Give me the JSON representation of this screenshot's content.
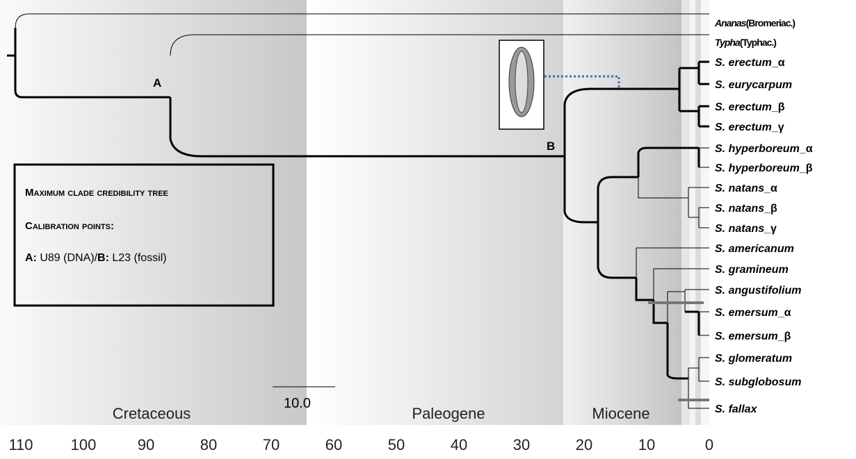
{
  "taxa": [
    {
      "name": "Ananas",
      "suffix": "(Bromeriac.)"
    },
    {
      "name": "Typha",
      "suffix": "(Typhac.)"
    },
    {
      "name": "S. erectum",
      "suffix": "_α"
    },
    {
      "name": "S. eurycarpum"
    },
    {
      "name": "S. erectum",
      "suffix": "_β"
    },
    {
      "name": "S. erectum",
      "suffix": "_γ"
    },
    {
      "name": "S. hyperboreum",
      "suffix": "_α"
    },
    {
      "name": "S. hyperboreum",
      "suffix": "_β"
    },
    {
      "name": "S. natans",
      "suffix": "_α"
    },
    {
      "name": "S. natans",
      "suffix": "_β"
    },
    {
      "name": "S. natans",
      "suffix": "_γ"
    },
    {
      "name": "S. americanum"
    },
    {
      "name": "S. gramineum"
    },
    {
      "name": "S. angustifolium"
    },
    {
      "name": "S. emersum",
      "suffix": "_α"
    },
    {
      "name": "S. emersum",
      "suffix": "_β"
    },
    {
      "name": "S. glomeratum"
    },
    {
      "name": "S. subglobosum"
    },
    {
      "name": "S. fallax"
    }
  ],
  "node_labels": [
    "A",
    "B"
  ],
  "eras": [
    "Cretaceous",
    "Paleogene",
    "Miocene"
  ],
  "scale_bar": "10.0",
  "axis_ticks": [
    110,
    100,
    90,
    80,
    70,
    60,
    50,
    40,
    30,
    20,
    10,
    0
  ],
  "legend": {
    "title": "Maximum clade credibility tree",
    "subtitle": "Calibration points:",
    "a_key": "A:",
    "a_text": " U89 (DNA)/",
    "b_key": "B:",
    "b_text": " L23 (fossil)"
  }
}
